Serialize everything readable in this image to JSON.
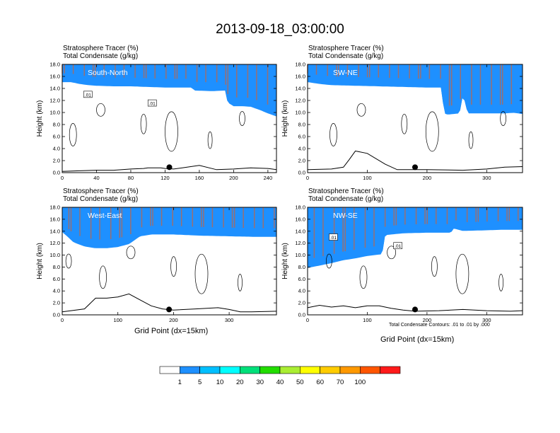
{
  "title": "2013-09-18_03:00:00",
  "header_lines": [
    "Stratosphere Tracer   (%)",
    "Total Condensate   (g/kg)"
  ],
  "ylabel": "Height (km)",
  "xlabel": "Grid Point (dx=15km)",
  "footnote": "Total Condensate Contours: .01 to .01 by .000",
  "colors": {
    "levels": [
      "#ffffff",
      "#1e90ff",
      "#00bfff",
      "#00ffff",
      "#00e07a",
      "#22dd00",
      "#aaee33",
      "#ffff00",
      "#ffcc00",
      "#ff9900",
      "#ff5500",
      "#ff1a1a"
    ]
  },
  "colorbar": {
    "labels": [
      "1",
      "5",
      "10",
      "20",
      "30",
      "40",
      "50",
      "60",
      "70",
      "100"
    ]
  },
  "chart_data": [
    {
      "type": "contour",
      "panel_label": "South-North",
      "xlim": [
        0,
        250
      ],
      "ylim": [
        0,
        18
      ],
      "xticks": [
        "0",
        "40",
        "80",
        "120",
        "160",
        "200",
        "240"
      ],
      "yticks": [
        "0.0",
        "2.0",
        "4.0",
        "6.0",
        "8.0",
        "10.0",
        "12.0",
        "14.0",
        "16.0",
        "18.0"
      ],
      "contour_labels": [
        ".01",
        ".01"
      ],
      "tropopause": {
        "x": [
          0,
          10,
          20,
          30,
          40,
          60,
          80,
          100,
          120,
          150,
          155,
          175,
          190,
          193,
          200,
          210,
          220,
          230,
          240,
          250
        ],
        "y": [
          16.2,
          16.2,
          15.9,
          15.7,
          15.6,
          15.5,
          15.5,
          15.4,
          15.3,
          15.3,
          14.8,
          14.7,
          14.8,
          12.8,
          12.2,
          12.2,
          12.1,
          11.6,
          11.0,
          10.5
        ]
      },
      "terrain": {
        "x": [
          0,
          20,
          40,
          60,
          80,
          95,
          100,
          115,
          120,
          130,
          140,
          160,
          180,
          200,
          220,
          240,
          250
        ],
        "y": [
          0.2,
          0.3,
          0.4,
          0.4,
          0.6,
          0.7,
          0.8,
          0.8,
          0.7,
          0.6,
          0.8,
          1.2,
          0.5,
          0.6,
          0.8,
          0.7,
          0.5
        ]
      },
      "city_marker_x": 125
    },
    {
      "type": "contour",
      "panel_label": "SW-NE",
      "xlim": [
        0,
        360
      ],
      "ylim": [
        0,
        18
      ],
      "xticks": [
        "0",
        "100",
        "200",
        "300"
      ],
      "yticks": [
        "0.0",
        "2.0",
        "4.0",
        "6.0",
        "8.0",
        "10.0",
        "12.0",
        "14.0",
        "16.0",
        "18.0"
      ],
      "contour_labels": [],
      "tropopause": {
        "x": [
          0,
          20,
          40,
          80,
          120,
          160,
          200,
          225,
          228,
          235,
          255,
          258,
          262,
          268,
          300,
          330,
          345,
          360
        ],
        "y": [
          16.2,
          15.9,
          15.7,
          15.6,
          15.5,
          15.4,
          15.3,
          15.3,
          11.0,
          10.8,
          11.0,
          13.5,
          13.5,
          11.0,
          11.0,
          11.0,
          11.1,
          10.9
        ]
      },
      "terrain": {
        "x": [
          0,
          40,
          60,
          70,
          80,
          100,
          130,
          150,
          200,
          260,
          300,
          330,
          360
        ],
        "y": [
          0.5,
          0.6,
          0.9,
          2.2,
          3.6,
          3.2,
          1.4,
          0.5,
          0.5,
          0.4,
          0.6,
          0.9,
          1.0
        ]
      },
      "city_marker_x": 180
    },
    {
      "type": "contour",
      "panel_label": "West-East",
      "xlim": [
        0,
        385
      ],
      "ylim": [
        0,
        18
      ],
      "xticks": [
        "0",
        "100",
        "200",
        "300"
      ],
      "yticks": [
        "0.0",
        "2.0",
        "4.0",
        "6.0",
        "8.0",
        "10.0",
        "12.0",
        "14.0",
        "16.0",
        "18.0"
      ],
      "contour_labels": [],
      "tropopause": {
        "x": [
          0,
          10,
          20,
          40,
          60,
          80,
          100,
          120,
          140,
          160,
          200,
          250,
          300,
          350,
          385
        ],
        "y": [
          15.0,
          14.2,
          13.3,
          12.6,
          12.3,
          12.3,
          12.5,
          13.0,
          14.3,
          14.6,
          14.6,
          14.4,
          14.3,
          14.2,
          14.2
        ]
      },
      "terrain": {
        "x": [
          0,
          40,
          60,
          80,
          100,
          120,
          140,
          160,
          180,
          200,
          240,
          280,
          300,
          320,
          340,
          385
        ],
        "y": [
          0.5,
          1.0,
          2.8,
          2.8,
          3.0,
          3.5,
          2.5,
          1.5,
          1.0,
          0.8,
          1.0,
          1.2,
          0.9,
          0.5,
          0.5,
          0.6
        ]
      },
      "city_marker_x": 192
    },
    {
      "type": "contour",
      "panel_label": "NW-SE",
      "xlim": [
        0,
        360
      ],
      "ylim": [
        0,
        18
      ],
      "xticks": [
        "0",
        "100",
        "200",
        "300"
      ],
      "yticks": [
        "0.0",
        "2.0",
        "4.0",
        "6.0",
        "8.0",
        "10.0",
        "12.0",
        "14.0",
        "16.0",
        "18.0"
      ],
      "contour_labels": [
        ".01",
        ".01"
      ],
      "tropopause": {
        "x": [
          0,
          20,
          40,
          60,
          80,
          100,
          125,
          130,
          160,
          200,
          240,
          245,
          260,
          300,
          330,
          360
        ],
        "y": [
          9.0,
          9.4,
          9.8,
          10.3,
          10.6,
          11.0,
          11.3,
          14.5,
          14.8,
          14.9,
          14.9,
          15.6,
          15.2,
          15.3,
          15.4,
          15.4
        ]
      },
      "terrain": {
        "x": [
          0,
          20,
          40,
          60,
          80,
          100,
          120,
          140,
          160,
          180,
          220,
          260,
          300,
          340,
          360
        ],
        "y": [
          1.2,
          1.6,
          1.3,
          1.5,
          1.2,
          1.5,
          1.5,
          1.1,
          0.8,
          0.6,
          0.7,
          0.9,
          0.7,
          0.6,
          0.7
        ]
      },
      "city_marker_x": 180
    }
  ]
}
